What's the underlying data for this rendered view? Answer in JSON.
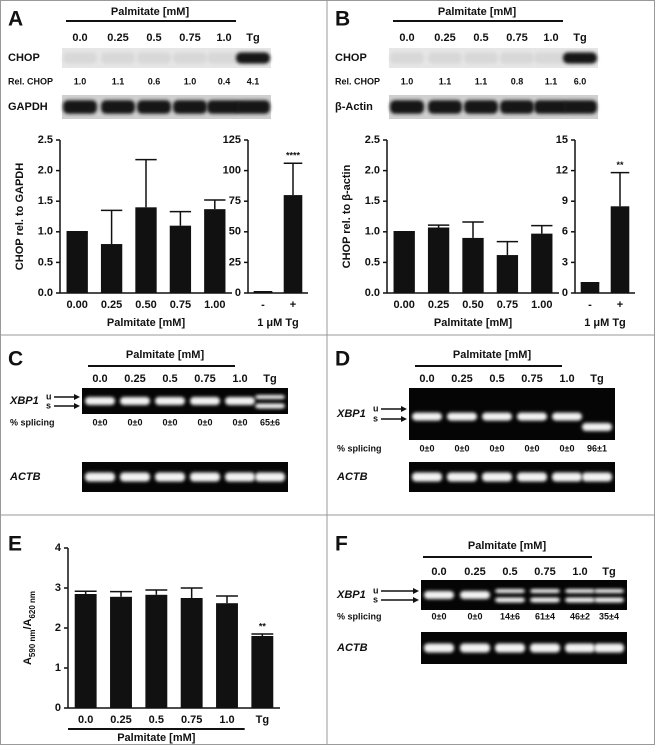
{
  "panel_labels": [
    "A",
    "B",
    "C",
    "D",
    "E",
    "F"
  ],
  "blots": [
    {
      "header": "Palmitate [mM]",
      "lanes": [
        "0.0",
        "0.25",
        "0.5",
        "0.75",
        "1.0",
        "Tg"
      ],
      "rows": [
        {
          "label": "CHOP"
        },
        {
          "label": "Rel. CHOP",
          "values": [
            "1.0",
            "1.1",
            "0.6",
            "1.0",
            "0.4",
            "4.1"
          ]
        },
        {
          "label": "GAPDH"
        }
      ]
    },
    {
      "header": "Palmitate [mM]",
      "lanes": [
        "0.0",
        "0.25",
        "0.5",
        "0.75",
        "1.0",
        "Tg"
      ],
      "rows": [
        {
          "label": "CHOP"
        },
        {
          "label": "Rel. CHOP",
          "values": [
            "1.0",
            "1.1",
            "1.1",
            "0.8",
            "1.1",
            "6.0"
          ]
        },
        {
          "label": "β-Actin"
        }
      ]
    },
    {
      "header": "Palmitate [mM]",
      "lanes": [
        "0.0",
        "0.25",
        "0.5",
        "0.75",
        "1.0",
        "Tg"
      ],
      "rows": [
        {
          "label": "XBP1",
          "markers": [
            "u",
            "s"
          ]
        },
        {
          "label": "% splicing",
          "values": [
            "0±0",
            "0±0",
            "0±0",
            "0±0",
            "0±0",
            "65±6"
          ]
        },
        {
          "label": "ACTB"
        }
      ]
    },
    {
      "header": "Palmitate [mM]",
      "lanes": [
        "0.0",
        "0.25",
        "0.5",
        "0.75",
        "1.0",
        "Tg"
      ],
      "rows": [
        {
          "label": "XBP1",
          "markers": [
            "u",
            "s"
          ]
        },
        {
          "label": "% splicing",
          "values": [
            "0±0",
            "0±0",
            "0±0",
            "0±0",
            "0±0",
            "96±1"
          ]
        },
        {
          "label": "ACTB"
        }
      ]
    },
    {
      "header": "Palmitate [mM]",
      "lanes": [
        "0.0",
        "0.25",
        "0.5",
        "0.75",
        "1.0",
        "Tg"
      ],
      "rows": [
        {
          "label": "XBP1",
          "markers": [
            "u",
            "s"
          ]
        },
        {
          "label": "% splicing",
          "values": [
            "0±0",
            "0±0",
            "14±6",
            "61±4",
            "46±2",
            "35±4"
          ]
        },
        {
          "label": "ACTB"
        }
      ]
    }
  ],
  "chart_data": [
    {
      "type": "bar",
      "ylabel": "CHOP rel. to GAPDH",
      "xlabel": "Palmitate [mM]",
      "categories": [
        "0.00",
        "0.25",
        "0.50",
        "0.75",
        "1.00"
      ],
      "values": [
        1.0,
        0.8,
        1.4,
        1.1,
        1.37
      ],
      "errors": [
        0,
        0.55,
        0.78,
        0.23,
        0.15
      ],
      "color": "#111111",
      "ylim": [
        0,
        2.5
      ],
      "yticks": [
        {
          "value": 0,
          "label": "0.0"
        },
        {
          "value": 0.5,
          "label": "0.5"
        },
        {
          "value": 1,
          "label": "1.0"
        },
        {
          "value": 1.5,
          "label": "1.5"
        },
        {
          "value": 2,
          "label": "2.0"
        },
        {
          "value": 2.5,
          "label": "2.5"
        }
      ]
    },
    {
      "type": "bar",
      "xlabel": "1 μM Tg",
      "categories": [
        "-",
        "+"
      ],
      "values": [
        1,
        80
      ],
      "errors": [
        0,
        26
      ],
      "color": "#111111",
      "ylim": [
        0,
        125
      ],
      "yticks": [
        0,
        25,
        50,
        75,
        100,
        125
      ],
      "annotation": "****"
    },
    {
      "type": "bar",
      "ylabel": "CHOP rel. to β-actin",
      "xlabel": "Palmitate [mM]",
      "categories": [
        "0.00",
        "0.25",
        "0.50",
        "0.75",
        "1.00"
      ],
      "values": [
        1.0,
        1.07,
        0.9,
        0.62,
        0.97
      ],
      "errors": [
        0,
        0.04,
        0.26,
        0.22,
        0.13
      ],
      "color": "#111111",
      "ylim": [
        0,
        2.5
      ],
      "yticks": [
        {
          "value": 0,
          "label": "0.0"
        },
        {
          "value": 0.5,
          "label": "0.5"
        },
        {
          "value": 1,
          "label": "1.0"
        },
        {
          "value": 1.5,
          "label": "1.5"
        },
        {
          "value": 2,
          "label": "2.0"
        },
        {
          "value": 2.5,
          "label": "2.5"
        }
      ]
    },
    {
      "type": "bar",
      "xlabel": "1 μM Tg",
      "categories": [
        "-",
        "+"
      ],
      "values": [
        1,
        8.5
      ],
      "errors": [
        0,
        3.3
      ],
      "color": "#111111",
      "ylim": [
        0,
        15
      ],
      "yticks": [
        0,
        3,
        6,
        9,
        12,
        15
      ],
      "annotation": "**"
    },
    {
      "type": "bar",
      "ylabel": [
        "A",
        "590 nm",
        "/A",
        "620 nm"
      ],
      "xlabel": "Palmitate [mM]",
      "categories": [
        "0.0",
        "0.25",
        "0.5",
        "0.75",
        "1.0",
        "Tg"
      ],
      "values": [
        2.85,
        2.78,
        2.83,
        2.75,
        2.62,
        1.8
      ],
      "errors": [
        0.07,
        0.13,
        0.12,
        0.25,
        0.18,
        0.05
      ],
      "color": "#111111",
      "ylim": [
        0,
        4
      ],
      "yticks": [
        0,
        1,
        2,
        3,
        4
      ],
      "annotation": "**"
    }
  ]
}
